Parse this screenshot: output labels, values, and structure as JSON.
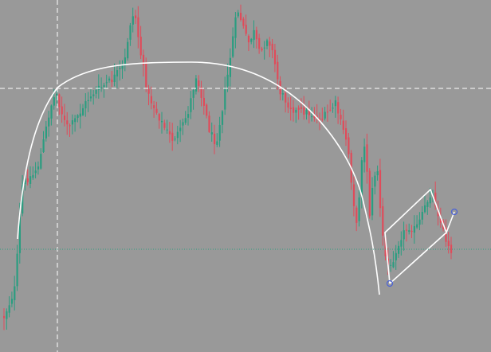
{
  "chart_data": {
    "type": "candlestick",
    "title": "",
    "xlabel": "",
    "ylabel": "",
    "grid": false,
    "colors": {
      "background": "#999999",
      "bull": "#2a9d80",
      "bear": "#e04b5a",
      "drawing": "#ffffff",
      "crosshair": "#ffffff",
      "level_line": "#2a9d80",
      "handle": "#4a62d8"
    },
    "ylim": [
      0,
      442
    ],
    "crosshair": {
      "x": 72,
      "y": 111
    },
    "horizontal_level": 313,
    "anchors": [
      [
        0,
        410
      ],
      [
        6,
        392
      ],
      [
        12,
        378
      ],
      [
        18,
        360
      ],
      [
        22,
        300
      ],
      [
        26,
        235
      ],
      [
        32,
        225
      ],
      [
        40,
        220
      ],
      [
        48,
        205
      ],
      [
        55,
        170
      ],
      [
        60,
        145
      ],
      [
        65,
        125
      ],
      [
        70,
        118
      ],
      [
        76,
        140
      ],
      [
        82,
        160
      ],
      [
        90,
        155
      ],
      [
        100,
        140
      ],
      [
        112,
        120
      ],
      [
        125,
        110
      ],
      [
        140,
        100
      ],
      [
        155,
        80
      ],
      [
        162,
        30
      ],
      [
        168,
        15
      ],
      [
        175,
        65
      ],
      [
        185,
        120
      ],
      [
        195,
        140
      ],
      [
        205,
        160
      ],
      [
        215,
        175
      ],
      [
        225,
        165
      ],
      [
        235,
        140
      ],
      [
        245,
        95
      ],
      [
        252,
        120
      ],
      [
        262,
        165
      ],
      [
        270,
        180
      ],
      [
        278,
        135
      ],
      [
        286,
        85
      ],
      [
        292,
        40
      ],
      [
        297,
        12
      ],
      [
        303,
        30
      ],
      [
        310,
        55
      ],
      [
        318,
        40
      ],
      [
        325,
        70
      ],
      [
        335,
        45
      ],
      [
        342,
        70
      ],
      [
        350,
        115
      ],
      [
        360,
        130
      ],
      [
        370,
        140
      ],
      [
        382,
        140
      ],
      [
        392,
        145
      ],
      [
        402,
        150
      ],
      [
        412,
        140
      ],
      [
        420,
        130
      ],
      [
        428,
        160
      ],
      [
        435,
        180
      ],
      [
        441,
        240
      ],
      [
        447,
        290
      ],
      [
        452,
        200
      ],
      [
        458,
        180
      ],
      [
        462,
        275
      ],
      [
        467,
        230
      ],
      [
        472,
        205
      ],
      [
        477,
        280
      ],
      [
        482,
        320
      ],
      [
        488,
        340
      ],
      [
        495,
        315
      ],
      [
        503,
        295
      ],
      [
        512,
        285
      ],
      [
        520,
        288
      ],
      [
        527,
        275
      ],
      [
        534,
        255
      ],
      [
        540,
        240
      ],
      [
        545,
        255
      ],
      [
        552,
        280
      ],
      [
        558,
        300
      ],
      [
        563,
        310
      ],
      [
        566,
        315
      ]
    ]
  }
}
